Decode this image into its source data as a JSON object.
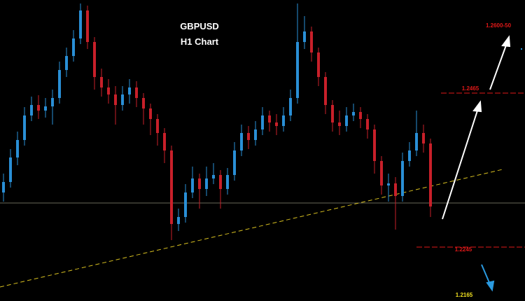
{
  "chart_data": {
    "type": "candlestick",
    "title": "GBPUSD",
    "subtitle": "H1 Chart",
    "up_color": "#2a8fd6",
    "down_color": "#c8202a",
    "ylim": [
      1.2168,
      1.2598
    ],
    "levels": [
      1.2465,
      1.2245
    ],
    "level_color": "#e01818",
    "annotations": [
      "1.2600-50",
      "1.2165"
    ],
    "annotation_colors": [
      "#e01818",
      "#f0e020"
    ],
    "open": [
      1.2323,
      1.2338,
      1.2373,
      1.2398,
      1.2433,
      1.2448,
      1.244,
      1.2446,
      1.2458,
      1.2498,
      1.2518,
      1.2543,
      1.2583,
      1.2538,
      1.2488,
      1.2473,
      1.2463,
      1.2448,
      1.2463,
      1.2473,
      1.2458,
      1.2443,
      1.2428,
      1.2408,
      1.2383,
      1.2278,
      1.2288,
      1.2323,
      1.2343,
      1.2328,
      1.2343,
      1.2348,
      1.2328,
      1.2348,
      1.2383,
      1.2408,
      1.2398,
      1.2413,
      1.2433,
      1.2423,
      1.2418,
      1.2433,
      1.2458,
      1.2538,
      1.2553,
      1.2523,
      1.2488,
      1.2448,
      1.2423,
      1.2418,
      1.2433,
      1.2438,
      1.2428,
      1.2413,
      1.2368,
      1.2333,
      1.2336,
      1.2318,
      1.2368,
      1.2383,
      1.2408,
      1.2393
    ],
    "high": [
      1.235,
      1.2385,
      1.241,
      1.2445,
      1.246,
      1.2462,
      1.2458,
      1.247,
      1.251,
      1.253,
      1.2555,
      1.2593,
      1.259,
      1.2545,
      1.25,
      1.2485,
      1.2475,
      1.2475,
      1.2485,
      1.2482,
      1.2465,
      1.245,
      1.2435,
      1.2415,
      1.239,
      1.23,
      1.2335,
      1.236,
      1.235,
      1.236,
      1.2365,
      1.2355,
      1.2358,
      1.2395,
      1.242,
      1.2418,
      1.2425,
      1.2445,
      1.244,
      1.2435,
      1.2445,
      1.247,
      1.2593,
      1.2575,
      1.256,
      1.253,
      1.2495,
      1.2455,
      1.244,
      1.2445,
      1.245,
      1.2445,
      1.2435,
      1.242,
      1.2375,
      1.235,
      1.2345,
      1.238,
      1.2395,
      1.244,
      1.242,
      1.24
    ],
    "low": [
      1.231,
      1.233,
      1.2362,
      1.239,
      1.2425,
      1.2428,
      1.243,
      1.242,
      1.245,
      1.2488,
      1.251,
      1.2535,
      1.2528,
      1.247,
      1.246,
      1.245,
      1.242,
      1.244,
      1.245,
      1.2445,
      1.242,
      1.2405,
      1.239,
      1.2365,
      1.2255,
      1.2268,
      1.228,
      1.2315,
      1.23,
      1.2318,
      1.2335,
      1.23,
      1.232,
      1.234,
      1.2375,
      1.2385,
      1.239,
      1.2405,
      1.241,
      1.2405,
      1.241,
      1.2425,
      1.245,
      1.2528,
      1.251,
      1.2475,
      1.2435,
      1.241,
      1.2405,
      1.241,
      1.2425,
      1.2415,
      1.24,
      1.235,
      1.232,
      1.231,
      1.227,
      1.231,
      1.236,
      1.2375,
      1.238,
      1.2288
    ],
    "close": [
      1.2338,
      1.2373,
      1.2398,
      1.2433,
      1.2448,
      1.244,
      1.2446,
      1.2458,
      1.2498,
      1.2518,
      1.2543,
      1.2583,
      1.2538,
      1.2488,
      1.2473,
      1.2463,
      1.2448,
      1.2463,
      1.2473,
      1.2458,
      1.2443,
      1.2428,
      1.2408,
      1.2383,
      1.2278,
      1.2288,
      1.2323,
      1.2343,
      1.2328,
      1.2343,
      1.2348,
      1.2328,
      1.2348,
      1.2383,
      1.2408,
      1.2398,
      1.2413,
      1.2433,
      1.2423,
      1.2418,
      1.2433,
      1.2458,
      1.2538,
      1.2553,
      1.2523,
      1.2488,
      1.2448,
      1.2423,
      1.2418,
      1.2433,
      1.2438,
      1.2428,
      1.2413,
      1.2368,
      1.2333,
      1.2336,
      1.2318,
      1.2368,
      1.2383,
      1.2408,
      1.2393,
      1.2303
    ]
  }
}
